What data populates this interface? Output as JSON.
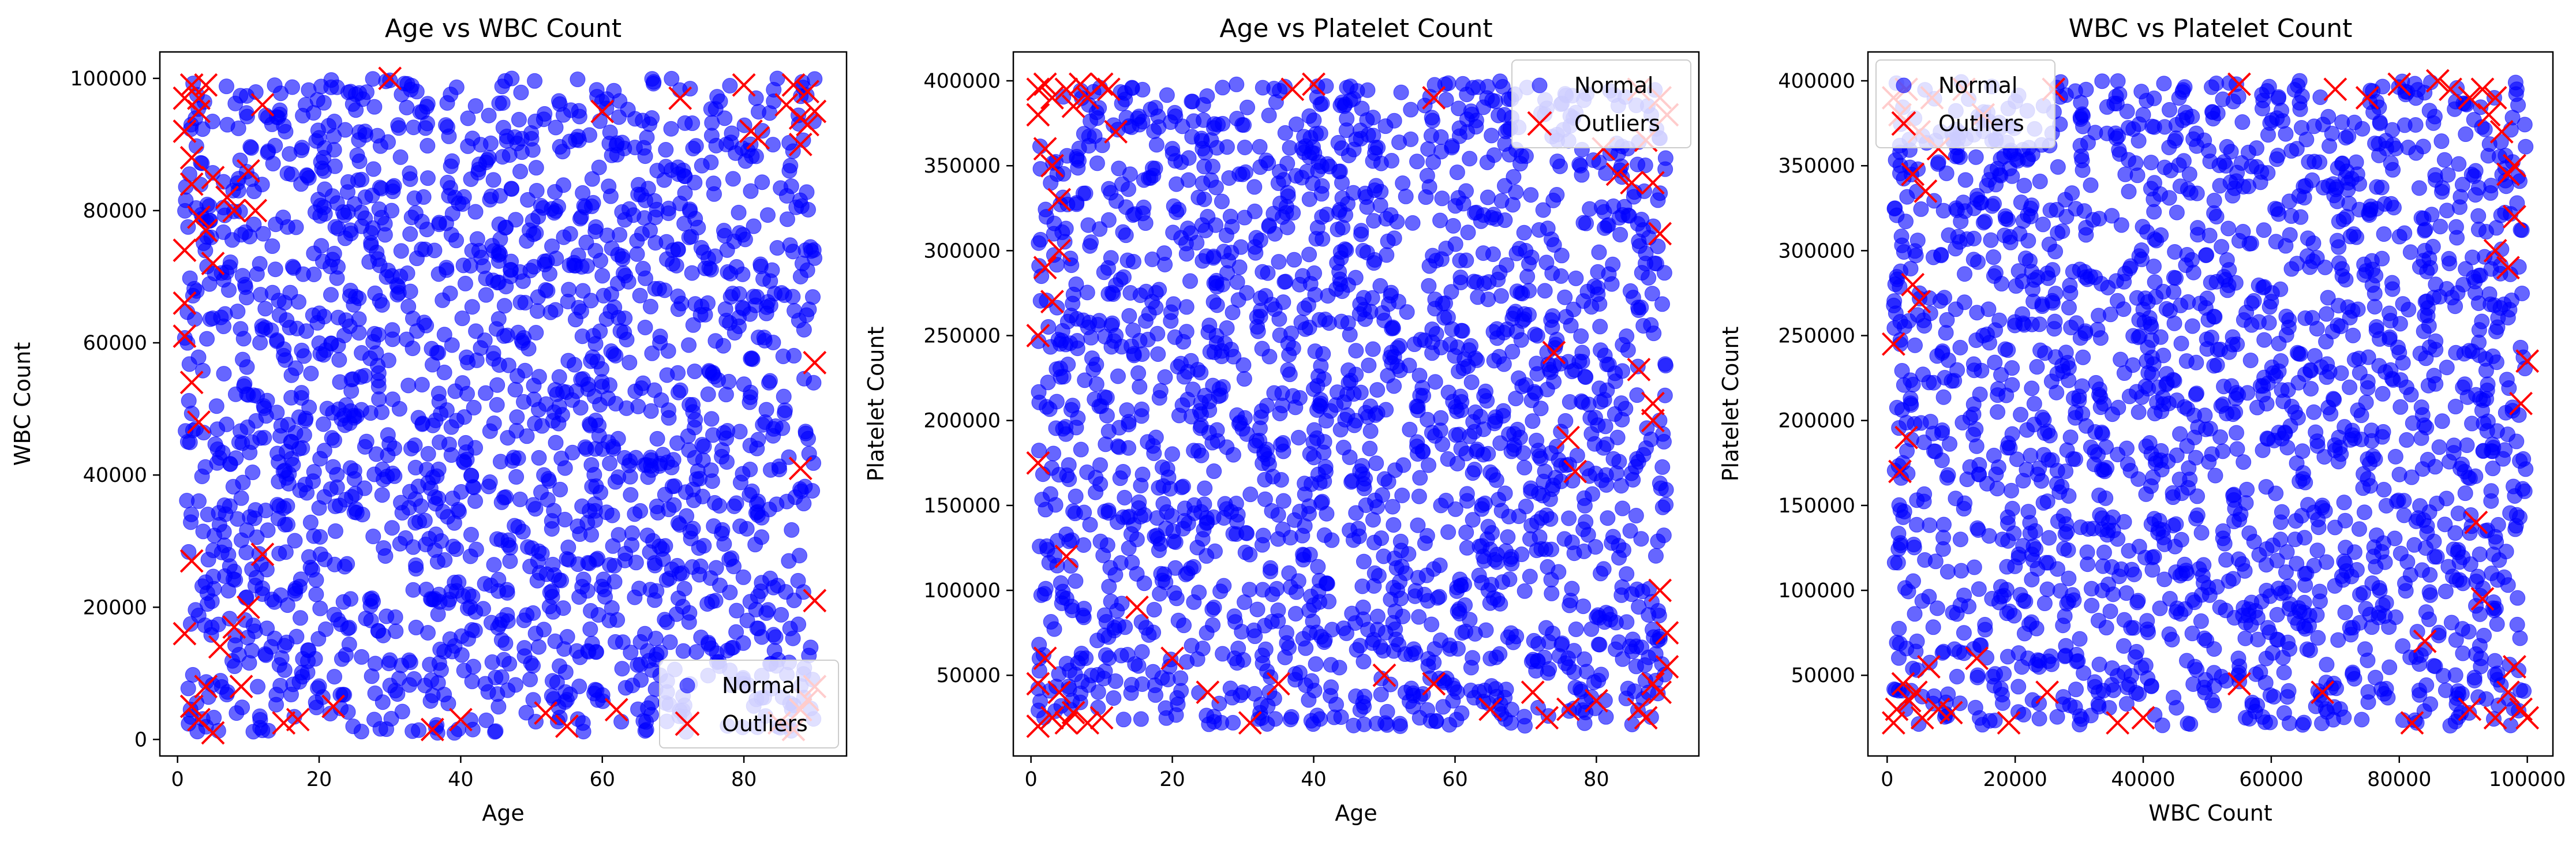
{
  "chart_data": [
    {
      "type": "scatter",
      "title": "Age vs WBC Count",
      "xlabel": "Age",
      "ylabel": "WBC Count",
      "xlim": [
        -2.5,
        94.5
      ],
      "ylim": [
        -2500,
        104000
      ],
      "xticks": [
        0,
        20,
        40,
        60,
        80
      ],
      "xtick_labels": [
        "0",
        "20",
        "40",
        "60",
        "80"
      ],
      "yticks": [
        0,
        20000,
        40000,
        60000,
        80000,
        100000
      ],
      "ytick_labels": [
        "0",
        "20000",
        "40000",
        "60000",
        "80000",
        "100000"
      ],
      "legend": {
        "placement": "lower-right",
        "entries": [
          "Normal",
          "Outliers"
        ]
      },
      "grid": false,
      "x_range": [
        1,
        90
      ],
      "y_range": [
        1000,
        100000
      ],
      "series": [
        {
          "name": "Normal",
          "marker": "circle",
          "color": "#0000ff",
          "count": 1900,
          "x": [
            12,
            25,
            33,
            41,
            47,
            52,
            58,
            64,
            70,
            76,
            83,
            20,
            30,
            44,
            55,
            67,
            78,
            15,
            38,
            61
          ],
          "y": [
            62000,
            81000,
            44000,
            57000,
            29000,
            68000,
            53000,
            37000,
            74000,
            21000,
            48000,
            91000,
            12000,
            88000,
            6000,
            94000,
            63000,
            35000,
            71000,
            18000
          ]
        },
        {
          "name": "Outliers",
          "marker": "x",
          "color": "#ff0000",
          "x": [
            1,
            1,
            2,
            2,
            3,
            3,
            4,
            5,
            7,
            8,
            10,
            11,
            12,
            30,
            60,
            71,
            80,
            81,
            82,
            86,
            87,
            88,
            88,
            89,
            89,
            90,
            1,
            2,
            3,
            4,
            5,
            6,
            8,
            9,
            10,
            12,
            15,
            17,
            22,
            36,
            40,
            52,
            55,
            62,
            85,
            87,
            88,
            89,
            90,
            90,
            1,
            1,
            2,
            2,
            3,
            4,
            5,
            1,
            2,
            3,
            90,
            88
          ],
          "y": [
            97000,
            92000,
            99000,
            88000,
            97000,
            95000,
            99000,
            85000,
            82000,
            80000,
            86000,
            80000,
            96000,
            100000,
            95000,
            97000,
            99000,
            92000,
            91000,
            96000,
            99000,
            94000,
            90000,
            98000,
            93000,
            95000,
            16000,
            5000,
            3000,
            8000,
            1000,
            14000,
            17000,
            8000,
            20000,
            28000,
            2500,
            3000,
            5000,
            1500,
            3000,
            4000,
            2000,
            4500,
            2500,
            1500,
            4500,
            6000,
            21000,
            8000,
            74000,
            66000,
            54000,
            27000,
            48000,
            77000,
            72000,
            61000,
            84000,
            79000,
            57000,
            41000
          ]
        }
      ]
    },
    {
      "type": "scatter",
      "title": "Age vs Platelet Count",
      "xlabel": "Age",
      "ylabel": "Platelet Count",
      "xlim": [
        -2.5,
        94.5
      ],
      "ylim": [
        2500,
        417000
      ],
      "xticks": [
        0,
        20,
        40,
        60,
        80
      ],
      "xtick_labels": [
        "0",
        "20",
        "40",
        "60",
        "80"
      ],
      "yticks": [
        50000,
        100000,
        150000,
        200000,
        250000,
        300000,
        350000,
        400000
      ],
      "ytick_labels": [
        "50000",
        "100000",
        "150000",
        "200000",
        "250000",
        "300000",
        "350000",
        "400000"
      ],
      "legend": {
        "placement": "upper-right",
        "entries": [
          "Normal",
          "Outliers"
        ]
      },
      "grid": false,
      "x_range": [
        1,
        90
      ],
      "y_range": [
        20000,
        400000
      ],
      "series": [
        {
          "name": "Normal",
          "marker": "circle",
          "color": "#0000ff",
          "count": 1900,
          "x": [
            12,
            25,
            33,
            41,
            47,
            52,
            58,
            64,
            70,
            76,
            83,
            20,
            30,
            44,
            55,
            67,
            78,
            15,
            38,
            61
          ],
          "y": [
            250000,
            320000,
            180000,
            210000,
            90000,
            270000,
            150000,
            120000,
            300000,
            60000,
            190000,
            360000,
            40000,
            340000,
            25000,
            380000,
            240000,
            130000,
            280000,
            75000
          ]
        },
        {
          "name": "Outliers",
          "marker": "x",
          "color": "#ff0000",
          "x": [
            1,
            1,
            2,
            2,
            3,
            3,
            4,
            5,
            6,
            7,
            8,
            10,
            11,
            12,
            37,
            40,
            57,
            81,
            83,
            85,
            86,
            87,
            88,
            89,
            89,
            90,
            1,
            1,
            2,
            3,
            4,
            5,
            6,
            8,
            10,
            15,
            20,
            25,
            31,
            35,
            50,
            57,
            65,
            71,
            73,
            76,
            80,
            86,
            87,
            88,
            89,
            90,
            1,
            1,
            2,
            3,
            4,
            5,
            74,
            76,
            77,
            86,
            88,
            88,
            89,
            90
          ],
          "y": [
            395000,
            380000,
            398000,
            360000,
            390000,
            350000,
            330000,
            395000,
            385000,
            398000,
            390000,
            398000,
            395000,
            370000,
            395000,
            398000,
            390000,
            360000,
            345000,
            340000,
            395000,
            365000,
            340000,
            390000,
            310000,
            380000,
            20000,
            45000,
            60000,
            25000,
            40000,
            22000,
            28000,
            22000,
            25000,
            90000,
            60000,
            40000,
            22000,
            45000,
            50000,
            45000,
            30000,
            40000,
            25000,
            30000,
            35000,
            30000,
            25000,
            45000,
            40000,
            55000,
            175000,
            250000,
            290000,
            270000,
            300000,
            120000,
            240000,
            190000,
            170000,
            230000,
            210000,
            200000,
            100000,
            75000
          ]
        }
      ]
    },
    {
      "type": "scatter",
      "title": "WBC vs Platelet Count",
      "xlabel": "WBC Count",
      "ylabel": "Platelet Count",
      "xlim": [
        -3000,
        104000
      ],
      "ylim": [
        2500,
        417000
      ],
      "xticks": [
        0,
        20000,
        40000,
        60000,
        80000,
        100000
      ],
      "xtick_labels": [
        "0",
        "20000",
        "40000",
        "60000",
        "80000",
        "100000"
      ],
      "yticks": [
        50000,
        100000,
        150000,
        200000,
        250000,
        300000,
        350000,
        400000
      ],
      "ytick_labels": [
        "50000",
        "100000",
        "150000",
        "200000",
        "250000",
        "300000",
        "350000",
        "400000"
      ],
      "legend": {
        "placement": "upper-left",
        "entries": [
          "Normal",
          "Outliers"
        ]
      },
      "grid": false,
      "x_range": [
        1000,
        100000
      ],
      "y_range": [
        20000,
        400000
      ],
      "series": [
        {
          "name": "Normal",
          "marker": "circle",
          "color": "#0000ff",
          "count": 1900,
          "x": [
            15000,
            28000,
            36000,
            44000,
            52000,
            60000,
            68000,
            76000,
            84000,
            22000,
            48000,
            64000,
            33000,
            72000,
            56000,
            40000,
            80000,
            18000,
            90000,
            12000
          ],
          "y": [
            250000,
            320000,
            180000,
            210000,
            90000,
            270000,
            150000,
            120000,
            300000,
            60000,
            190000,
            360000,
            40000,
            340000,
            25000,
            380000,
            240000,
            130000,
            280000,
            75000
          ]
        },
        {
          "name": "Outliers",
          "marker": "x",
          "color": "#ff0000",
          "x": [
            1000,
            2000,
            3000,
            4000,
            5000,
            6000,
            7000,
            8000,
            12000,
            15000,
            26000,
            55000,
            70000,
            75000,
            80000,
            86000,
            88000,
            91000,
            93000,
            94000,
            95000,
            96000,
            97000,
            98000,
            1000,
            1500,
            2500,
            3500,
            4500,
            5500,
            6500,
            8000,
            10000,
            14000,
            19000,
            25000,
            36000,
            40000,
            55000,
            68000,
            82000,
            84000,
            91000,
            93000,
            95000,
            97000,
            98000,
            99000,
            100000,
            1000,
            2000,
            3000,
            4000,
            5000,
            92000,
            95000,
            97000,
            99000,
            100000,
            98000
          ],
          "y": [
            390000,
            380000,
            395000,
            345000,
            370000,
            335000,
            390000,
            360000,
            395000,
            380000,
            395000,
            398000,
            395000,
            390000,
            398000,
            400000,
            395000,
            390000,
            395000,
            380000,
            390000,
            370000,
            345000,
            350000,
            22000,
            30000,
            45000,
            35000,
            40000,
            25000,
            55000,
            30000,
            28000,
            60000,
            22000,
            40000,
            22000,
            25000,
            45000,
            40000,
            22000,
            70000,
            30000,
            95000,
            25000,
            40000,
            55000,
            30000,
            25000,
            245000,
            170000,
            190000,
            280000,
            270000,
            140000,
            300000,
            290000,
            210000,
            235000,
            320000
          ]
        }
      ]
    }
  ]
}
